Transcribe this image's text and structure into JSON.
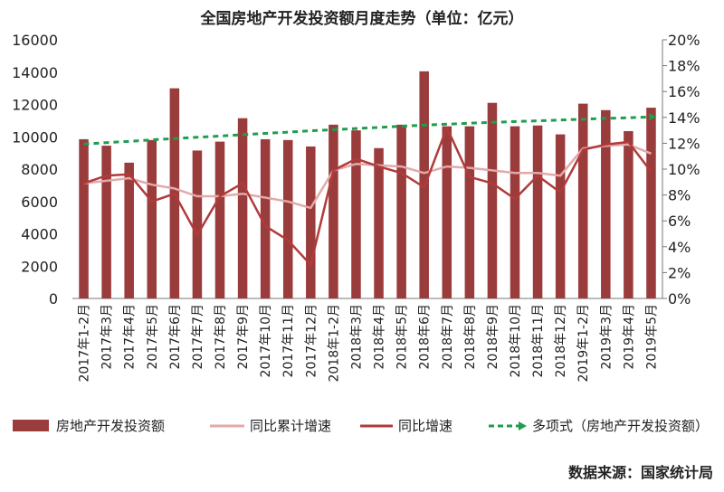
{
  "chart_data": {
    "type": "bar",
    "title": "全国房地产开发投资额月度走势（单位：亿元）",
    "source": "数据来源：国家统计局",
    "categories": [
      "2017年1-2月",
      "2017年3月",
      "2017年4月",
      "2017年5月",
      "2017年6月",
      "2017年7月",
      "2017年8月",
      "2017年9月",
      "2017年10月",
      "2017年11月",
      "2017年12月",
      "2018年1-2月",
      "2018年3月",
      "2018年4月",
      "2018年5月",
      "2018年6月",
      "2018年7月",
      "2018年8月",
      "2018年9月",
      "2018年10月",
      "2018年11月",
      "2018年12月",
      "2019年1-2月",
      "2019年3月",
      "2019年4月",
      "2019年5月"
    ],
    "y_left": {
      "min": 0,
      "max": 16000,
      "ticks": [
        "0",
        "2000",
        "4000",
        "6000",
        "8000",
        "10000",
        "12000",
        "14000",
        "16000"
      ]
    },
    "y_right": {
      "min": 0,
      "max": 20,
      "ticks": [
        "0%",
        "2%",
        "4%",
        "6%",
        "8%",
        "10%",
        "12%",
        "14%",
        "16%",
        "18%",
        "20%"
      ]
    },
    "grid": false,
    "legend_position": "bottom",
    "series": [
      {
        "name": "房地产开发投资额",
        "type": "bar",
        "axis": "left",
        "color": "#9b3c3c",
        "values": [
          9850,
          9450,
          8400,
          9800,
          13000,
          9150,
          9700,
          11150,
          9850,
          9800,
          9400,
          10750,
          10400,
          9300,
          10750,
          14050,
          10650,
          10650,
          12100,
          10650,
          10700,
          10150,
          12050,
          11650,
          10350,
          11800
        ]
      },
      {
        "name": "同比累计增速",
        "type": "line",
        "axis": "right",
        "color": "#e3a9a9",
        "values": [
          8.9,
          9.1,
          9.3,
          8.8,
          8.5,
          7.9,
          7.9,
          8.1,
          7.8,
          7.5,
          7.0,
          9.9,
          10.4,
          10.3,
          10.2,
          9.7,
          10.2,
          10.1,
          9.9,
          9.7,
          9.7,
          9.5,
          11.6,
          11.8,
          11.9,
          11.2
        ]
      },
      {
        "name": "同比增速",
        "type": "line",
        "axis": "right",
        "color": "#b23a3a",
        "values": [
          8.9,
          9.5,
          9.6,
          7.5,
          8.1,
          4.9,
          7.9,
          8.9,
          5.6,
          4.5,
          2.6,
          9.9,
          10.8,
          10.2,
          9.7,
          8.6,
          13.2,
          9.4,
          8.9,
          7.7,
          9.5,
          8.2,
          11.5,
          11.9,
          12.1,
          9.8
        ]
      },
      {
        "name": "多项式（房地产开发投资额）",
        "type": "trendline",
        "axis": "left",
        "color": "#1e9e4e",
        "values": [
          9550,
          9640,
          9720,
          9810,
          9890,
          9970,
          10050,
          10130,
          10210,
          10290,
          10370,
          10440,
          10510,
          10580,
          10650,
          10720,
          10780,
          10840,
          10890,
          10940,
          10990,
          11040,
          11090,
          11140,
          11180,
          11230
        ]
      }
    ]
  }
}
